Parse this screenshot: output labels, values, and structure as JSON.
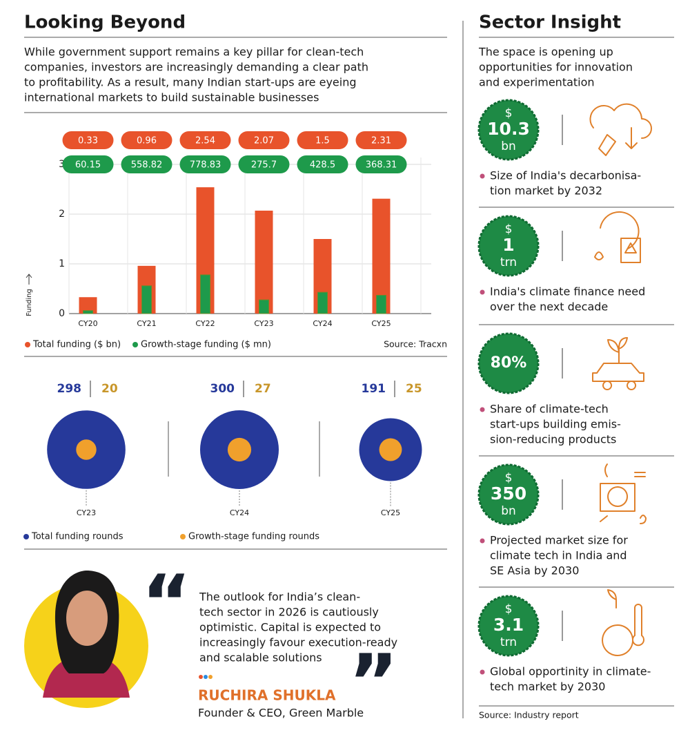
{
  "looking_beyond": {
    "title": "Looking Beyond",
    "intro": [
      "While government support remains a key pillar for clean-tech",
      "companies, investors are increasingly demanding a clear path",
      "to profitability. As a result, many Indian start-ups are eyeing",
      "international markets to build sustainable businesses"
    ]
  },
  "chart_data": [
    {
      "type": "bar",
      "y_label": "Funding",
      "categories": [
        "CY20",
        "CY21",
        "CY22",
        "CY23",
        "CY24",
        "CY25"
      ],
      "series": [
        {
          "name": "Total funding ($ bn)",
          "color": "#e8532b",
          "values": [
            0.33,
            0.96,
            2.54,
            2.07,
            1.5,
            2.31
          ]
        },
        {
          "name": "Growth-stage funding ($ mn)",
          "color": "#1e9a4b",
          "values": [
            0.06015,
            0.55882,
            0.77883,
            0.2757,
            0.4285,
            0.36831
          ],
          "value_labels": [
            "60.15",
            "558.82",
            "778.83",
            "275.7",
            "428.5",
            "368.31"
          ]
        }
      ],
      "ylim": [
        0,
        3
      ],
      "yticks": [
        0,
        1,
        2,
        3
      ],
      "grid": true,
      "source": "Source: Tracxn"
    },
    {
      "type": "circles",
      "categories": [
        "CY23",
        "CY24",
        "CY25"
      ],
      "series": [
        {
          "name": "Total funding rounds",
          "color": "#26399a",
          "values": [
            298,
            300,
            191
          ]
        },
        {
          "name": "Growth-stage funding rounds",
          "color": "#f0a02c",
          "values": [
            20,
            27,
            25
          ]
        }
      ]
    }
  ],
  "quote": {
    "lines": [
      "The outlook for India’s clean-",
      "tech sector in 2026 is cautiously",
      "optimistic. Capital is expected to",
      "increasingly favour execution-ready",
      "and scalable solutions"
    ],
    "name": "RUCHIRA SHUKLA",
    "role": "Founder & CEO, Green Marble"
  },
  "sector_insight": {
    "title": "Sector Insight",
    "intro": [
      "The space is opening up",
      "opportunities for innovation",
      "and experimentation"
    ],
    "items": [
      {
        "badge": {
          "prefix": "$",
          "value": "10.3",
          "unit": "bn"
        },
        "lines": [
          "Size of India's decarbonisa-",
          "tion market by 2032"
        ]
      },
      {
        "badge": {
          "prefix": "$",
          "value": "1",
          "unit": "trn"
        },
        "lines": [
          "India's climate finance need",
          "over the next decade"
        ]
      },
      {
        "badge": {
          "value": "80%"
        },
        "lines": [
          "Share of climate-tech",
          "start-ups building emis-",
          "sion-reducing products"
        ]
      },
      {
        "badge": {
          "prefix": "$",
          "value": "350",
          "unit": "bn"
        },
        "lines": [
          "Projected market size for",
          "climate tech in India and",
          "SE Asia by 2030"
        ]
      },
      {
        "badge": {
          "prefix": "$",
          "value": "3.1",
          "unit": "trn"
        },
        "lines": [
          "Global opportinity in climate-",
          "tech market by 2030"
        ]
      }
    ],
    "source": "Source: Industry report"
  }
}
